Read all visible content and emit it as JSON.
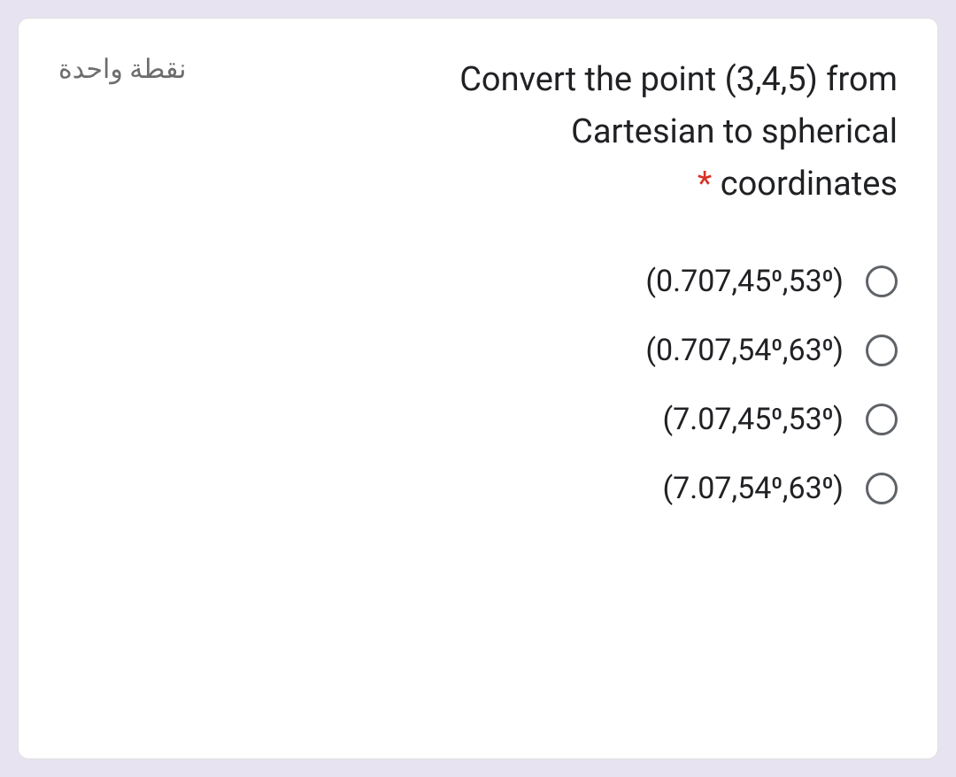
{
  "card": {
    "points_label": "نقطة واحدة",
    "question_line1": "Convert the point (3,4,5) from",
    "question_line2": "Cartesian to spherical",
    "question_line3": "coordinates",
    "required_marker": "*",
    "options": [
      "(0.707,45⁰,53⁰)",
      "(0.707,54⁰,63⁰)",
      "(7.07,45⁰,53⁰)",
      "(7.07,54⁰,63⁰)"
    ]
  },
  "colors": {
    "page_bg": "#e8e3f0",
    "card_bg": "#ffffff",
    "text_primary": "#202124",
    "text_secondary": "#6d6d6d",
    "required": "#d93025",
    "radio_border": "#5f6368"
  }
}
